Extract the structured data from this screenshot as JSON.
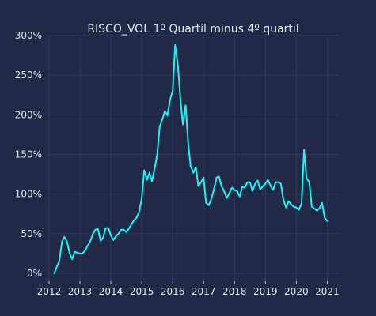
{
  "chart_data": {
    "type": "line",
    "title": "RISCO_VOL 1º Quartil minus 4º quartil",
    "xlabel": "",
    "ylabel": "",
    "xlim": [
      2011.95,
      2021.4
    ],
    "ylim": [
      -10,
      300
    ],
    "grid": true,
    "colors": {
      "background": "#212946",
      "line": "#18f5f7",
      "grid": "#2e3b5e",
      "text": "#dfe3ea"
    },
    "x_ticks": [
      {
        "value": 2012,
        "label": "2012"
      },
      {
        "value": 2013,
        "label": "2013"
      },
      {
        "value": 2014,
        "label": "2014"
      },
      {
        "value": 2015,
        "label": "2015"
      },
      {
        "value": 2016,
        "label": "2016"
      },
      {
        "value": 2017,
        "label": "2017"
      },
      {
        "value": 2018,
        "label": "2018"
      },
      {
        "value": 2019,
        "label": "2019"
      },
      {
        "value": 2020,
        "label": "2020"
      },
      {
        "value": 2021,
        "label": "2021"
      }
    ],
    "y_ticks": [
      {
        "value": 0,
        "label": "0%"
      },
      {
        "value": 50,
        "label": "50%"
      },
      {
        "value": 100,
        "label": "100%"
      },
      {
        "value": 150,
        "label": "150%"
      },
      {
        "value": 200,
        "label": "200%"
      },
      {
        "value": 250,
        "label": "250%"
      },
      {
        "value": 300,
        "label": "300%"
      }
    ],
    "series": [
      {
        "x": [
          2012.17,
          2012.25,
          2012.33,
          2012.42,
          2012.5,
          2012.58,
          2012.67,
          2012.75,
          2012.83,
          2012.92,
          2013.0,
          2013.08,
          2013.17,
          2013.25,
          2013.33,
          2013.42,
          2013.5,
          2013.58,
          2013.67,
          2013.75,
          2013.83,
          2013.92,
          2014.0,
          2014.08,
          2014.17,
          2014.25,
          2014.33,
          2014.42,
          2014.5,
          2014.58,
          2014.67,
          2014.75,
          2014.83,
          2014.92,
          2015.0,
          2015.08,
          2015.17,
          2015.25,
          2015.33,
          2015.42,
          2015.5,
          2015.58,
          2015.67,
          2015.75,
          2015.83,
          2015.92,
          2016.0,
          2016.08,
          2016.17,
          2016.25,
          2016.33,
          2016.42,
          2016.5,
          2016.58,
          2016.67,
          2016.75,
          2016.83,
          2016.92,
          2017.0,
          2017.08,
          2017.17,
          2017.25,
          2017.33,
          2017.42,
          2017.5,
          2017.58,
          2017.67,
          2017.75,
          2017.83,
          2017.92,
          2018.0,
          2018.08,
          2018.17,
          2018.25,
          2018.33,
          2018.42,
          2018.5,
          2018.58,
          2018.67,
          2018.75,
          2018.83,
          2018.92,
          2019.0,
          2019.08,
          2019.17,
          2019.25,
          2019.33,
          2019.42,
          2019.5,
          2019.58,
          2019.67,
          2019.75,
          2019.83,
          2019.92,
          2020.0,
          2020.08,
          2020.17,
          2020.25,
          2020.33,
          2020.42,
          2020.5,
          2020.58,
          2020.67,
          2020.75,
          2020.83,
          2020.92,
          2021.0
        ],
        "values": [
          0,
          8,
          15,
          40,
          46,
          40,
          25,
          18,
          27,
          26,
          25,
          25,
          29,
          35,
          40,
          50,
          55,
          56,
          41,
          45,
          57,
          57,
          48,
          42,
          47,
          50,
          55,
          55,
          52,
          56,
          62,
          67,
          70,
          78,
          95,
          130,
          118,
          127,
          116,
          133,
          150,
          185,
          195,
          205,
          199,
          220,
          230,
          288,
          262,
          220,
          188,
          212,
          165,
          135,
          127,
          134,
          110,
          115,
          121,
          89,
          86,
          94,
          105,
          121,
          122,
          110,
          103,
          95,
          101,
          108,
          105,
          104,
          97,
          109,
          108,
          115,
          115,
          104,
          113,
          117,
          106,
          110,
          113,
          118,
          110,
          105,
          115,
          115,
          113,
          93,
          83,
          91,
          87,
          84,
          83,
          80,
          88,
          156,
          120,
          115,
          84,
          82,
          79,
          82,
          89,
          70,
          66
        ],
        "color": "#18f5f7"
      }
    ]
  }
}
